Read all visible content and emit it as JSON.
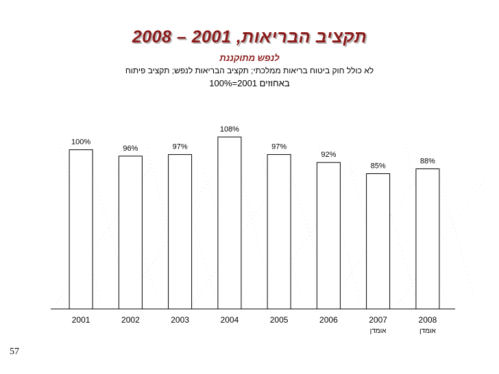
{
  "slide": {
    "title": "תקציב הבריאות, 2001 – 2008",
    "subtitle": "לנפש מתוקננת",
    "note": "לא כולל חוק ביטוח בריאות ממלכתי; תקציב הבריאות לנפש; תקציב פיתוח",
    "basis": "באחוזים 2001=100%",
    "slide_number": "57"
  },
  "chart_data": {
    "type": "bar",
    "title": "תקציב הבריאות, 2001 – 2008",
    "subtitle": "לנפש מתוקננת",
    "categories": [
      "2001",
      "2002",
      "2003",
      "2004",
      "2005",
      "2006",
      "2007",
      "2008"
    ],
    "category_sublabels": [
      "",
      "",
      "",
      "",
      "",
      "",
      "אומדן",
      "אומדן"
    ],
    "values": [
      100,
      96,
      97,
      108,
      97,
      92,
      85,
      88
    ],
    "value_labels": [
      "100%",
      "96%",
      "97%",
      "108%",
      "97%",
      "92%",
      "85%",
      "88%"
    ],
    "ylim": [
      0,
      108
    ],
    "grid": false,
    "legend": "none",
    "colors": {
      "bar_fill": "#ffffff",
      "bar_stroke": "#000000",
      "title": "#8b1a1a"
    }
  }
}
